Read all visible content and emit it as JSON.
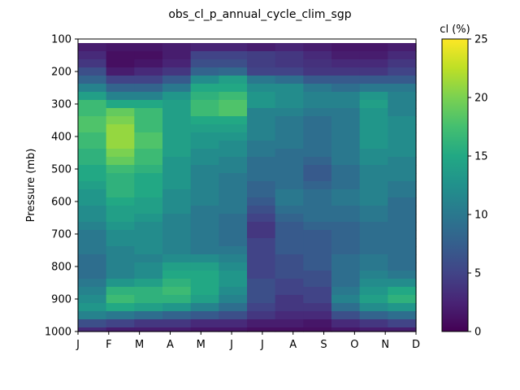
{
  "chart_data": {
    "type": "heatmap",
    "title": "obs_cl_p_annual_cycle_clim_sgp",
    "xlabel": "",
    "ylabel": "Pressure (mb)",
    "colorbar_label": "cl (%)",
    "colormap": "viridis",
    "x_ticks": [
      "J",
      "F",
      "M",
      "A",
      "M",
      "J",
      "J",
      "A",
      "S",
      "O",
      "N",
      "D"
    ],
    "y_ticks": [
      100,
      200,
      300,
      400,
      500,
      600,
      700,
      800,
      900,
      1000
    ],
    "colorbar_ticks": [
      0,
      5,
      10,
      15,
      20,
      25
    ],
    "ylim": [
      1000,
      100
    ],
    "clim": [
      0,
      25
    ],
    "y_inverted": true,
    "grid": false,
    "months": [
      "Jan",
      "Feb",
      "Mar",
      "Apr",
      "May",
      "Jun",
      "Jul",
      "Aug",
      "Sep",
      "Oct",
      "Nov",
      "Dec"
    ],
    "pressure_levels": [
      125,
      150,
      175,
      200,
      225,
      250,
      275,
      300,
      325,
      350,
      375,
      400,
      425,
      450,
      475,
      500,
      525,
      550,
      575,
      600,
      625,
      650,
      675,
      700,
      725,
      750,
      775,
      800,
      825,
      850,
      875,
      900,
      925,
      950,
      975,
      1000
    ],
    "values": [
      [
        2.0,
        1.5,
        1.5,
        2.0,
        2.5,
        2.5,
        2.0,
        2.5,
        2.0,
        1.5,
        1.5,
        2.0
      ],
      [
        3.0,
        1.0,
        1.0,
        2.0,
        5.0,
        5.0,
        4.5,
        4.0,
        3.0,
        2.0,
        2.0,
        3.0
      ],
      [
        4.0,
        1.0,
        1.5,
        2.5,
        6.0,
        6.0,
        4.5,
        4.0,
        3.5,
        3.0,
        3.0,
        4.0
      ],
      [
        6.0,
        2.0,
        3.0,
        4.0,
        8.0,
        8.5,
        5.0,
        5.0,
        4.0,
        4.0,
        4.0,
        5.0
      ],
      [
        8.0,
        5.0,
        5.0,
        7.0,
        12.0,
        14.0,
        10.0,
        9.0,
        7.0,
        7.0,
        7.0,
        7.0
      ],
      [
        11.0,
        8.0,
        8.0,
        10.0,
        15.0,
        15.0,
        12.0,
        12.0,
        10.0,
        9.0,
        10.0,
        10.0
      ],
      [
        14.0,
        11.0,
        11.0,
        13.0,
        16.0,
        17.0,
        13.0,
        12.0,
        11.0,
        11.0,
        13.0,
        11.0
      ],
      [
        17.0,
        15.0,
        15.0,
        14.0,
        17.0,
        18.0,
        13.0,
        12.0,
        11.0,
        11.0,
        14.0,
        11.0
      ],
      [
        17.0,
        19.0,
        17.0,
        14.0,
        17.0,
        18.0,
        11.0,
        11.0,
        10.0,
        10.0,
        13.0,
        11.0
      ],
      [
        18.0,
        20.0,
        17.0,
        14.0,
        15.0,
        15.0,
        11.0,
        10.0,
        9.0,
        10.0,
        13.0,
        12.0
      ],
      [
        18.0,
        21.0,
        17.0,
        14.0,
        14.0,
        14.0,
        11.0,
        10.0,
        9.0,
        10.0,
        13.0,
        12.0
      ],
      [
        17.0,
        21.0,
        18.0,
        14.0,
        13.0,
        13.0,
        11.0,
        10.0,
        9.0,
        10.0,
        13.0,
        12.0
      ],
      [
        17.0,
        21.0,
        18.0,
        14.0,
        13.0,
        12.0,
        10.0,
        10.0,
        9.0,
        10.0,
        13.0,
        12.0
      ],
      [
        16.0,
        20.0,
        17.0,
        14.0,
        12.0,
        12.0,
        10.0,
        9.0,
        9.0,
        10.0,
        12.0,
        12.0
      ],
      [
        16.0,
        19.0,
        17.0,
        13.0,
        12.0,
        11.0,
        9.0,
        9.0,
        8.0,
        10.0,
        12.0,
        11.0
      ],
      [
        15.0,
        17.0,
        16.0,
        13.0,
        11.0,
        11.0,
        9.0,
        9.0,
        7.0,
        9.0,
        11.0,
        11.0
      ],
      [
        15.0,
        16.0,
        15.0,
        13.0,
        11.0,
        10.0,
        9.0,
        9.0,
        7.0,
        9.0,
        11.0,
        11.0
      ],
      [
        14.0,
        16.0,
        15.0,
        13.0,
        11.0,
        10.0,
        8.0,
        9.0,
        8.0,
        9.0,
        11.0,
        10.0
      ],
      [
        13.0,
        16.0,
        15.0,
        12.0,
        11.0,
        10.0,
        8.0,
        10.0,
        9.0,
        10.0,
        11.0,
        10.0
      ],
      [
        13.0,
        15.0,
        14.0,
        12.0,
        11.0,
        10.0,
        7.0,
        10.0,
        9.0,
        10.0,
        11.0,
        9.0
      ],
      [
        12.0,
        14.0,
        14.0,
        12.0,
        10.0,
        10.0,
        6.0,
        9.0,
        9.0,
        9.0,
        10.0,
        9.0
      ],
      [
        12.0,
        14.0,
        13.0,
        11.0,
        10.0,
        9.0,
        5.0,
        8.0,
        9.0,
        9.0,
        10.0,
        9.0
      ],
      [
        11.0,
        13.0,
        12.0,
        11.0,
        10.0,
        9.0,
        4.0,
        7.0,
        8.0,
        8.0,
        9.0,
        9.0
      ],
      [
        10.0,
        12.0,
        12.0,
        11.0,
        10.0,
        9.0,
        4.0,
        7.0,
        7.0,
        8.0,
        9.0,
        9.0
      ],
      [
        10.0,
        12.0,
        12.0,
        11.0,
        10.0,
        9.0,
        5.0,
        7.0,
        7.0,
        8.0,
        9.0,
        9.0
      ],
      [
        10.0,
        11.0,
        12.0,
        11.0,
        10.0,
        10.0,
        5.0,
        7.0,
        7.0,
        8.0,
        9.0,
        9.0
      ],
      [
        9.0,
        11.0,
        11.0,
        12.0,
        12.0,
        11.0,
        5.0,
        6.0,
        7.0,
        9.0,
        10.0,
        9.0
      ],
      [
        9.0,
        11.0,
        12.0,
        14.0,
        14.0,
        12.0,
        5.0,
        6.0,
        7.0,
        9.0,
        10.0,
        9.0
      ],
      [
        9.0,
        11.0,
        12.0,
        15.0,
        15.0,
        13.0,
        5.0,
        6.0,
        6.0,
        9.0,
        11.0,
        10.0
      ],
      [
        10.0,
        13.0,
        14.0,
        16.0,
        15.0,
        13.0,
        6.0,
        5.0,
        6.0,
        9.0,
        12.0,
        12.0
      ],
      [
        11.0,
        16.0,
        16.0,
        17.0,
        15.0,
        12.0,
        6.0,
        5.0,
        5.0,
        10.0,
        13.0,
        15.0
      ],
      [
        12.0,
        17.0,
        16.0,
        16.0,
        14.0,
        11.0,
        6.0,
        4.0,
        5.0,
        11.0,
        14.0,
        16.0
      ],
      [
        13.0,
        15.0,
        14.0,
        13.0,
        11.0,
        9.0,
        5.0,
        4.0,
        4.0,
        9.0,
        12.0,
        13.0
      ],
      [
        11.0,
        10.0,
        9.0,
        8.0,
        7.0,
        6.0,
        4.0,
        3.0,
        3.0,
        6.0,
        8.0,
        9.0
      ],
      [
        6.0,
        5.0,
        4.0,
        4.0,
        3.0,
        3.0,
        2.0,
        2.0,
        1.5,
        3.0,
        4.0,
        5.0
      ],
      [
        3.0,
        2.0,
        2.0,
        2.0,
        1.5,
        1.5,
        1.0,
        1.0,
        1.0,
        1.5,
        2.0,
        2.0
      ]
    ]
  }
}
